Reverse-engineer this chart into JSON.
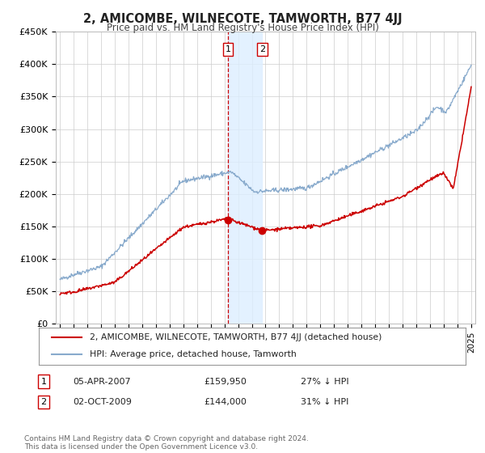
{
  "title": "2, AMICOMBE, WILNECOTE, TAMWORTH, B77 4JJ",
  "subtitle": "Price paid vs. HM Land Registry's House Price Index (HPI)",
  "legend_entry1": "2, AMICOMBE, WILNECOTE, TAMWORTH, B77 4JJ (detached house)",
  "legend_entry2": "HPI: Average price, detached house, Tamworth",
  "transaction1_label": "1",
  "transaction1_date": "05-APR-2007",
  "transaction1_price": "£159,950",
  "transaction1_hpi": "27% ↓ HPI",
  "transaction2_label": "2",
  "transaction2_date": "02-OCT-2009",
  "transaction2_price": "£144,000",
  "transaction2_hpi": "31% ↓ HPI",
  "transaction1_year": 2007.27,
  "transaction2_year": 2009.75,
  "marker1_value": 159950,
  "marker2_value": 144000,
  "yticks": [
    0,
    50000,
    100000,
    150000,
    200000,
    250000,
    300000,
    350000,
    400000,
    450000
  ],
  "ytick_labels": [
    "£0",
    "£50K",
    "£100K",
    "£150K",
    "£200K",
    "£250K",
    "£300K",
    "£350K",
    "£400K",
    "£450K"
  ],
  "xlim_start": 1994.7,
  "xlim_end": 2025.3,
  "ylim_min": 0,
  "ylim_max": 450000,
  "background_color": "#ffffff",
  "plot_bg_color": "#ffffff",
  "grid_color": "#cccccc",
  "red_line_color": "#cc0000",
  "blue_line_color": "#88aacc",
  "marker_color": "#cc0000",
  "shade_color": "#ddeeff",
  "vline_color": "#cc0000",
  "footnote": "Contains HM Land Registry data © Crown copyright and database right 2024.\nThis data is licensed under the Open Government Licence v3.0."
}
